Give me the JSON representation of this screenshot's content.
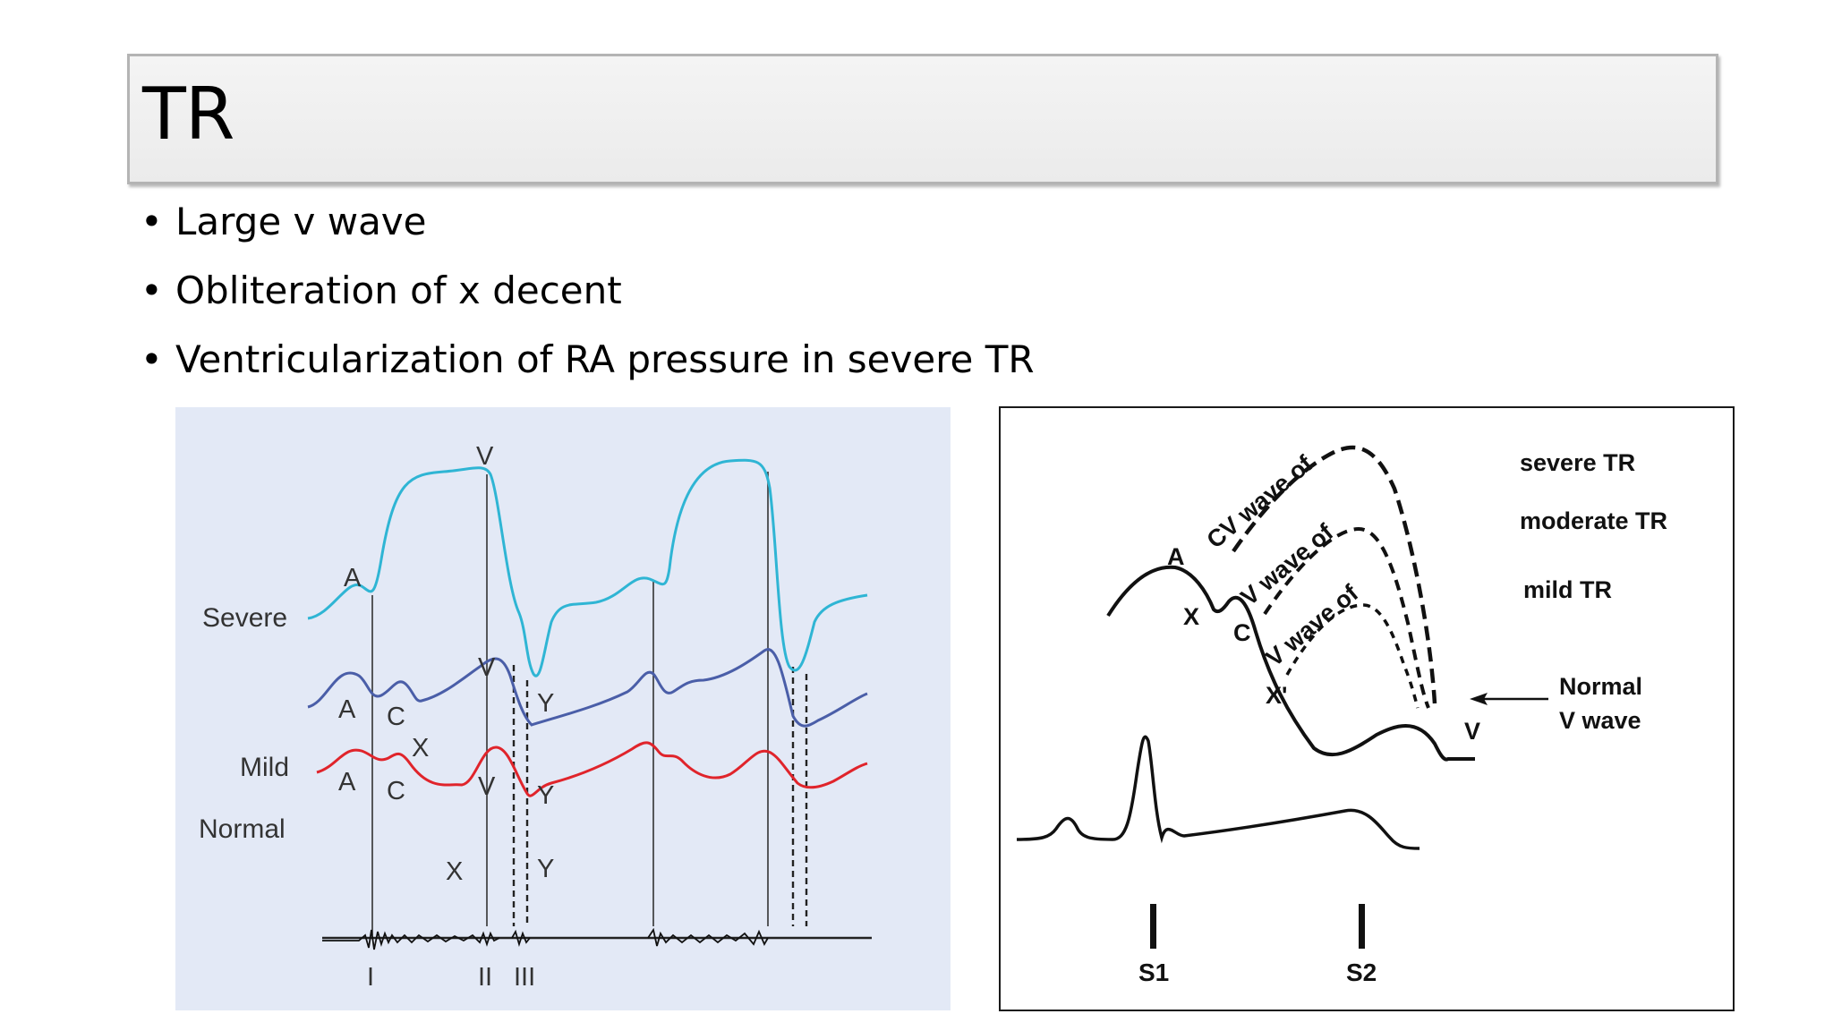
{
  "slide": {
    "title": "TR",
    "bullets": [
      "Large v wave",
      "Obliteration of x decent",
      "Ventricularization of RA pressure in severe TR"
    ]
  },
  "left_figure": {
    "trace_labels": {
      "severe": "Severe",
      "mild": "Mild",
      "normal": "Normal"
    },
    "wave_labels": {
      "severe_a": "A",
      "severe_v": "V",
      "severe_y": "Y",
      "mild_a": "A",
      "mild_c": "C",
      "mild_x": "X",
      "mild_v": "V",
      "mild_y": "Y",
      "normal_a": "A",
      "normal_c": "C",
      "normal_x": "X",
      "normal_v": "V",
      "normal_y": "Y"
    },
    "heart_sounds": [
      "I",
      "II",
      "III"
    ],
    "colors": {
      "severe": "#2fb5d4",
      "mild": "#4a5ea8",
      "normal": "#e0242b",
      "background": "#e3e9f6"
    }
  },
  "right_figure": {
    "curve_labels": [
      "CV wave of",
      "V wave of",
      "V wave of"
    ],
    "legend": [
      "severe TR",
      "moderate TR",
      "mild TR"
    ],
    "normal_label": [
      "Normal",
      "V wave"
    ],
    "wave_labels": {
      "a": "A",
      "x": "X",
      "c": "C",
      "x_prime": "X'",
      "v": "V"
    },
    "heart_sounds": [
      "S1",
      "S2"
    ]
  }
}
